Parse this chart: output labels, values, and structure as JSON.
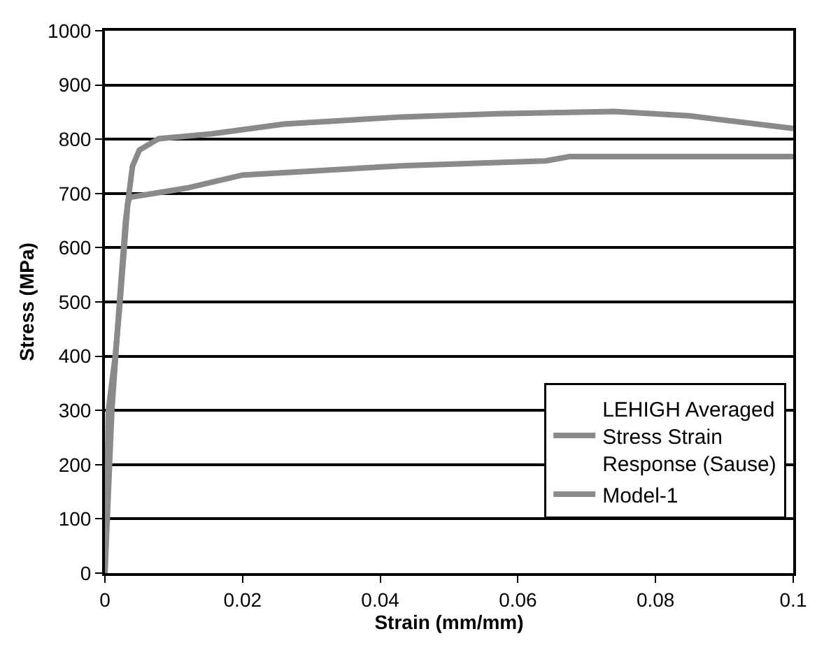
{
  "chart_data": {
    "type": "line",
    "xlabel": "Strain (mm/mm)",
    "ylabel": "Stress (MPa)",
    "xlim": [
      0,
      0.1
    ],
    "xticks": [
      0,
      0.02,
      0.04,
      0.06,
      0.08,
      0.1
    ],
    "ylim": [
      0,
      1000
    ],
    "yticks": [
      0,
      100,
      200,
      300,
      400,
      500,
      600,
      700,
      800,
      900,
      1000
    ],
    "grid": "y",
    "legend": "bottom right",
    "marker": "none",
    "line_style": "solid",
    "series": [
      {
        "name": "LEHIGH Averaged Stress Strain Response (Sause)",
        "color": "#8a8a8a",
        "x": [
          0,
          0.0005,
          0.001,
          0.002,
          0.003,
          0.004,
          0.005,
          0.0078,
          0.0155,
          0.026,
          0.043,
          0.057,
          0.074,
          0.085,
          0.1
        ],
        "values": [
          0,
          150,
          300,
          480,
          650,
          750,
          780,
          801,
          810,
          828,
          841,
          847,
          851,
          843,
          820
        ]
      },
      {
        "name": "Model-1",
        "color": "#8a8a8a",
        "x": [
          0,
          0.0003,
          0.0005,
          0.0015,
          0.0022,
          0.0033,
          0.0036,
          0.0119,
          0.02,
          0.043,
          0.064,
          0.0675,
          0.085,
          0.1
        ],
        "values": [
          0,
          150,
          300,
          400,
          500,
          680,
          693,
          710,
          734,
          751,
          760,
          768,
          768,
          768
        ]
      }
    ]
  }
}
